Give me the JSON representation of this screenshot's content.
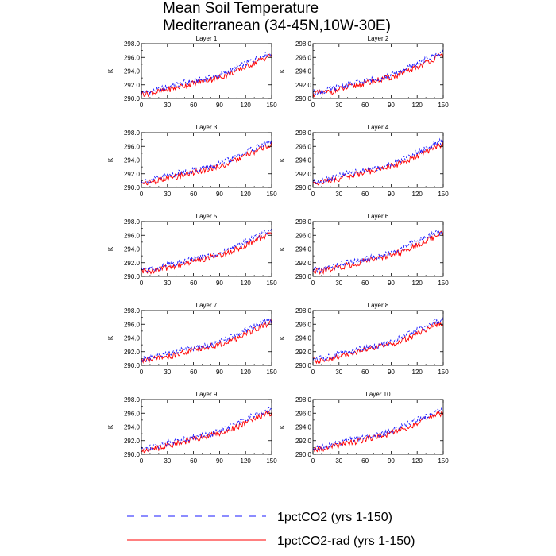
{
  "title": {
    "line1": "Mean Soil Temperature",
    "line2": "Mediterranean (34-45N,10W-30E)"
  },
  "colors": {
    "series_a": "#1a1aff",
    "series_b": "#ff0000"
  },
  "legend": {
    "items": [
      {
        "label": "1pctCO2 (yrs 1-150)",
        "color": "#1a1aff",
        "style": "dashed"
      },
      {
        "label": "1pctCO2-rad (yrs 1-150)",
        "color": "#ff0000",
        "style": "solid"
      }
    ]
  },
  "chart_data": [
    {
      "type": "line",
      "title": "Layer 1",
      "ylabel": "K",
      "xlim": [
        0,
        150
      ],
      "ylim": [
        290,
        298
      ],
      "xticks": [
        0,
        30,
        60,
        90,
        120,
        150
      ],
      "yticks": [
        "290.0",
        "292.0",
        "294.0",
        "296.0",
        "298.0"
      ],
      "x": [
        0,
        10,
        20,
        30,
        40,
        50,
        60,
        70,
        80,
        90,
        100,
        110,
        120,
        130,
        140,
        150
      ],
      "series": [
        {
          "name": "1pctCO2 (yrs 1-150)",
          "values": [
            290.9,
            291.0,
            291.3,
            291.7,
            292.0,
            292.3,
            292.5,
            292.8,
            293.0,
            293.4,
            293.9,
            294.5,
            295.1,
            295.7,
            296.3,
            296.7
          ]
        },
        {
          "name": "1pctCO2-rad (yrs 1-150)",
          "values": [
            290.7,
            290.8,
            291.0,
            291.3,
            291.6,
            291.9,
            292.2,
            292.5,
            292.8,
            293.1,
            293.5,
            294.0,
            294.6,
            295.2,
            295.8,
            296.4
          ]
        }
      ]
    },
    {
      "type": "line",
      "title": "Layer 2",
      "ylabel": "K",
      "xlim": [
        0,
        150
      ],
      "ylim": [
        290,
        298
      ],
      "xticks": [
        0,
        30,
        60,
        90,
        120,
        150
      ],
      "yticks": [
        "290.0",
        "292.0",
        "294.0",
        "296.0",
        "298.0"
      ],
      "x": [
        0,
        10,
        20,
        30,
        40,
        50,
        60,
        70,
        80,
        90,
        100,
        110,
        120,
        130,
        140,
        150
      ],
      "series": [
        {
          "name": "1pctCO2 (yrs 1-150)",
          "values": [
            290.9,
            291.0,
            291.3,
            291.7,
            292.0,
            292.3,
            292.5,
            292.8,
            293.0,
            293.4,
            293.9,
            294.5,
            295.1,
            295.7,
            296.3,
            296.8
          ]
        },
        {
          "name": "1pctCO2-rad (yrs 1-150)",
          "values": [
            290.7,
            290.8,
            291.0,
            291.3,
            291.6,
            291.9,
            292.2,
            292.5,
            292.8,
            293.1,
            293.5,
            294.0,
            294.6,
            295.2,
            295.8,
            296.4
          ]
        }
      ]
    },
    {
      "type": "line",
      "title": "Layer 3",
      "ylabel": "K",
      "xlim": [
        0,
        150
      ],
      "ylim": [
        290,
        298
      ],
      "xticks": [
        0,
        30,
        60,
        90,
        120,
        150
      ],
      "yticks": [
        "290.0",
        "292.0",
        "294.0",
        "296.0",
        "298.0"
      ],
      "x": [
        0,
        10,
        20,
        30,
        40,
        50,
        60,
        70,
        80,
        90,
        100,
        110,
        120,
        130,
        140,
        150
      ],
      "series": [
        {
          "name": "1pctCO2 (yrs 1-150)",
          "values": [
            290.9,
            291.0,
            291.3,
            291.7,
            292.0,
            292.3,
            292.5,
            292.8,
            293.0,
            293.4,
            293.9,
            294.5,
            295.1,
            295.7,
            296.3,
            296.7
          ]
        },
        {
          "name": "1pctCO2-rad (yrs 1-150)",
          "values": [
            290.7,
            290.8,
            291.0,
            291.3,
            291.6,
            291.9,
            292.2,
            292.5,
            292.8,
            293.1,
            293.5,
            294.0,
            294.6,
            295.2,
            295.8,
            296.4
          ]
        }
      ]
    },
    {
      "type": "line",
      "title": "Layer 4",
      "ylabel": "K",
      "xlim": [
        0,
        150
      ],
      "ylim": [
        290,
        298
      ],
      "xticks": [
        0,
        30,
        60,
        90,
        120,
        150
      ],
      "yticks": [
        "290.0",
        "292.0",
        "294.0",
        "296.0",
        "298.0"
      ],
      "x": [
        0,
        10,
        20,
        30,
        40,
        50,
        60,
        70,
        80,
        90,
        100,
        110,
        120,
        130,
        140,
        150
      ],
      "series": [
        {
          "name": "1pctCO2 (yrs 1-150)",
          "values": [
            290.9,
            291.0,
            291.3,
            291.7,
            292.0,
            292.3,
            292.5,
            292.8,
            293.0,
            293.4,
            293.9,
            294.5,
            295.1,
            295.7,
            296.3,
            296.8
          ]
        },
        {
          "name": "1pctCO2-rad (yrs 1-150)",
          "values": [
            290.7,
            290.8,
            291.0,
            291.3,
            291.6,
            291.9,
            292.2,
            292.5,
            292.8,
            293.1,
            293.5,
            294.0,
            294.6,
            295.2,
            295.8,
            296.4
          ]
        }
      ]
    },
    {
      "type": "line",
      "title": "Layer 5",
      "ylabel": "K",
      "xlim": [
        0,
        150
      ],
      "ylim": [
        290,
        298
      ],
      "xticks": [
        0,
        30,
        60,
        90,
        120,
        150
      ],
      "yticks": [
        "290.0",
        "292.0",
        "294.0",
        "296.0",
        "298.0"
      ],
      "x": [
        0,
        10,
        20,
        30,
        40,
        50,
        60,
        70,
        80,
        90,
        100,
        110,
        120,
        130,
        140,
        150
      ],
      "series": [
        {
          "name": "1pctCO2 (yrs 1-150)",
          "values": [
            290.9,
            291.0,
            291.3,
            291.7,
            292.0,
            292.3,
            292.5,
            292.8,
            293.0,
            293.4,
            293.9,
            294.5,
            295.1,
            295.7,
            296.3,
            296.6
          ]
        },
        {
          "name": "1pctCO2-rad (yrs 1-150)",
          "values": [
            290.7,
            290.8,
            291.0,
            291.3,
            291.6,
            291.9,
            292.2,
            292.5,
            292.8,
            293.1,
            293.5,
            294.0,
            294.6,
            295.2,
            295.8,
            296.3
          ]
        }
      ]
    },
    {
      "type": "line",
      "title": "Layer 6",
      "ylabel": "K",
      "xlim": [
        0,
        150
      ],
      "ylim": [
        290,
        298
      ],
      "xticks": [
        0,
        30,
        60,
        90,
        120,
        150
      ],
      "yticks": [
        "290.0",
        "292.0",
        "294.0",
        "296.0",
        "298.0"
      ],
      "x": [
        0,
        10,
        20,
        30,
        40,
        50,
        60,
        70,
        80,
        90,
        100,
        110,
        120,
        130,
        140,
        150
      ],
      "series": [
        {
          "name": "1pctCO2 (yrs 1-150)",
          "values": [
            290.9,
            291.0,
            291.3,
            291.7,
            292.0,
            292.3,
            292.5,
            292.8,
            293.0,
            293.4,
            293.9,
            294.5,
            295.1,
            295.7,
            296.3,
            296.6
          ]
        },
        {
          "name": "1pctCO2-rad (yrs 1-150)",
          "values": [
            290.7,
            290.8,
            291.0,
            291.3,
            291.6,
            291.9,
            292.2,
            292.5,
            292.8,
            293.1,
            293.5,
            294.0,
            294.6,
            295.2,
            295.8,
            296.3
          ]
        }
      ]
    },
    {
      "type": "line",
      "title": "Layer 7",
      "ylabel": "K",
      "xlim": [
        0,
        150
      ],
      "ylim": [
        290,
        298
      ],
      "xticks": [
        0,
        30,
        60,
        90,
        120,
        150
      ],
      "yticks": [
        "290.0",
        "292.0",
        "294.0",
        "296.0",
        "298.0"
      ],
      "x": [
        0,
        10,
        20,
        30,
        40,
        50,
        60,
        70,
        80,
        90,
        100,
        110,
        120,
        130,
        140,
        150
      ],
      "series": [
        {
          "name": "1pctCO2 (yrs 1-150)",
          "values": [
            290.9,
            291.0,
            291.3,
            291.7,
            292.0,
            292.3,
            292.5,
            292.8,
            293.0,
            293.4,
            293.9,
            294.5,
            295.1,
            295.7,
            296.3,
            296.6
          ]
        },
        {
          "name": "1pctCO2-rad (yrs 1-150)",
          "values": [
            290.7,
            290.8,
            291.0,
            291.3,
            291.6,
            291.9,
            292.2,
            292.5,
            292.8,
            293.1,
            293.5,
            294.0,
            294.6,
            295.2,
            295.8,
            296.3
          ]
        }
      ]
    },
    {
      "type": "line",
      "title": "Layer 8",
      "ylabel": "K",
      "xlim": [
        0,
        150
      ],
      "ylim": [
        290,
        298
      ],
      "xticks": [
        0,
        30,
        60,
        90,
        120,
        150
      ],
      "yticks": [
        "290.0",
        "292.0",
        "294.0",
        "296.0",
        "298.0"
      ],
      "x": [
        0,
        10,
        20,
        30,
        40,
        50,
        60,
        70,
        80,
        90,
        100,
        110,
        120,
        130,
        140,
        150
      ],
      "series": [
        {
          "name": "1pctCO2 (yrs 1-150)",
          "values": [
            290.9,
            291.0,
            291.3,
            291.7,
            292.0,
            292.3,
            292.5,
            292.8,
            293.0,
            293.4,
            293.9,
            294.5,
            295.1,
            295.7,
            296.3,
            296.6
          ]
        },
        {
          "name": "1pctCO2-rad (yrs 1-150)",
          "values": [
            290.7,
            290.8,
            291.0,
            291.3,
            291.6,
            291.9,
            292.2,
            292.5,
            292.8,
            293.1,
            293.5,
            294.0,
            294.6,
            295.2,
            295.8,
            296.2
          ]
        }
      ]
    },
    {
      "type": "line",
      "title": "Layer 9",
      "ylabel": "K",
      "xlim": [
        0,
        150
      ],
      "ylim": [
        290,
        298
      ],
      "xticks": [
        0,
        30,
        60,
        90,
        120,
        150
      ],
      "yticks": [
        "290.0",
        "292.0",
        "294.0",
        "296.0",
        "298.0"
      ],
      "x": [
        0,
        10,
        20,
        30,
        40,
        50,
        60,
        70,
        80,
        90,
        100,
        110,
        120,
        130,
        140,
        150
      ],
      "series": [
        {
          "name": "1pctCO2 (yrs 1-150)",
          "values": [
            290.9,
            291.0,
            291.3,
            291.7,
            292.0,
            292.3,
            292.5,
            292.8,
            293.0,
            293.4,
            293.9,
            294.5,
            295.1,
            295.7,
            296.2,
            296.5
          ]
        },
        {
          "name": "1pctCO2-rad (yrs 1-150)",
          "values": [
            290.7,
            290.8,
            291.0,
            291.3,
            291.6,
            291.9,
            292.2,
            292.5,
            292.8,
            293.1,
            293.5,
            294.0,
            294.6,
            295.2,
            295.7,
            296.1
          ]
        }
      ]
    },
    {
      "type": "line",
      "title": "Layer 10",
      "ylabel": "K",
      "xlim": [
        0,
        150
      ],
      "ylim": [
        290,
        298
      ],
      "xticks": [
        0,
        30,
        60,
        90,
        120,
        150
      ],
      "yticks": [
        "290.0",
        "292.0",
        "294.0",
        "296.0",
        "298.0"
      ],
      "x": [
        0,
        10,
        20,
        30,
        40,
        50,
        60,
        70,
        80,
        90,
        100,
        110,
        120,
        130,
        140,
        150
      ],
      "series": [
        {
          "name": "1pctCO2 (yrs 1-150)",
          "values": [
            290.9,
            291.0,
            291.3,
            291.7,
            292.0,
            292.3,
            292.5,
            292.8,
            293.0,
            293.4,
            293.9,
            294.5,
            295.1,
            295.6,
            296.1,
            296.5
          ]
        },
        {
          "name": "1pctCO2-rad (yrs 1-150)",
          "values": [
            290.7,
            290.8,
            291.0,
            291.3,
            291.6,
            291.9,
            292.2,
            292.5,
            292.8,
            293.1,
            293.5,
            294.0,
            294.6,
            295.1,
            295.6,
            296.1
          ]
        }
      ]
    }
  ]
}
